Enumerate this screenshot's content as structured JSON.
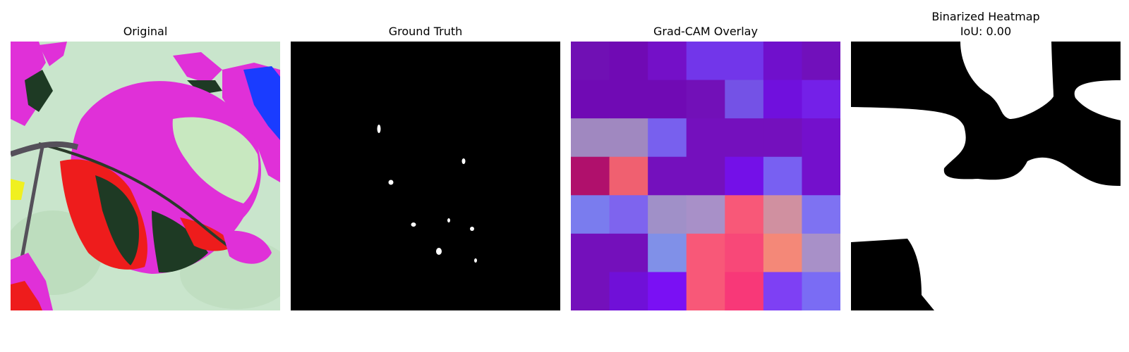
{
  "panels": [
    {
      "title": "Original"
    },
    {
      "title": "Ground Truth"
    },
    {
      "title": "Grad-CAM Overlay"
    },
    {
      "title": "Binarized Heatmap",
      "subtitle": "IoU: 0.00"
    }
  ],
  "gradcam_grid": [
    [
      "#7010b4",
      "#700ab4",
      "#7410c8",
      "#7236ea",
      "#7236ea",
      "#7010cc",
      "#7110bb"
    ],
    [
      "#700ab4",
      "#700ab4",
      "#700ab4",
      "#7210b8",
      "#7452e6",
      "#7010dd",
      "#7420e8"
    ],
    [
      "#a088c0",
      "#a088c0",
      "#7860ee",
      "#7410bd",
      "#7410bd",
      "#7410bd",
      "#7410cc"
    ],
    [
      "#b0106c",
      "#f06070",
      "#7410bd",
      "#7410bd",
      "#7410e8",
      "#7860f2",
      "#7410cc"
    ],
    [
      "#7a7cee",
      "#7e64ee",
      "#a090c8",
      "#a890c8",
      "#f85878",
      "#d090a0",
      "#7e72f2"
    ],
    [
      "#7410bb",
      "#7410bb",
      "#8090e8",
      "#f85878",
      "#f84878",
      "#f48878",
      "#a890c8"
    ],
    [
      "#7410bb",
      "#7010d8",
      "#7a10f4",
      "#f85878",
      "#f83878",
      "#7e40f4",
      "#7a6cf4"
    ]
  ],
  "colors": {
    "page_background": "#ffffff",
    "mask_background": "#000000",
    "mask_foreground": "#ffffff",
    "leaf_magenta": "#e030d8",
    "leaf_red": "#ee1c1c",
    "leaf_dark": "#1e3a24",
    "leaf_pale": "#c8e8c0",
    "sky_blue": "#1a3cff",
    "background_green": "#c8e4cc"
  }
}
